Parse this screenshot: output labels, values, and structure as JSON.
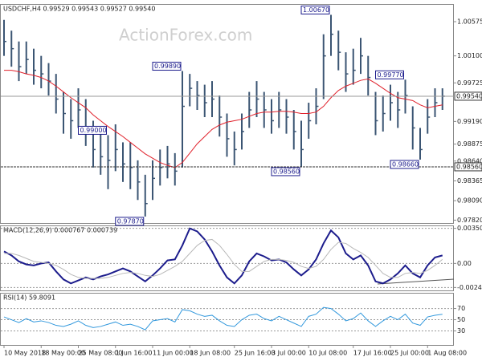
{
  "chart_data": [
    {
      "type": "ohlc",
      "title": "USDCHF,H4  0.99529 0.99543 0.99527 0.99540",
      "watermark": "ActionForex.com",
      "bar_color": "#3b5573",
      "ma_color": "#e0202a",
      "high": [
        1.006,
        1.0045,
        1.003,
        1.003,
        1.002,
        1.001,
        1.0,
        0.9985,
        0.996,
        0.995,
        0.9965,
        0.995,
        0.992,
        0.9905,
        0.99,
        0.9915,
        0.989,
        0.989,
        0.9865,
        0.9845,
        0.9865,
        0.988,
        0.9885,
        0.9875,
        0.9989,
        0.9985,
        0.9975,
        0.997,
        0.9975,
        0.9955,
        0.993,
        0.9905,
        0.993,
        0.996,
        0.9975,
        0.996,
        0.995,
        0.996,
        0.995,
        0.9935,
        0.992,
        0.9945,
        0.9965,
        1.004,
        1.0067,
        1.0045,
        1.0015,
        1.002,
        1.0035,
        1.001,
        0.996,
        0.9955,
        0.997,
        0.996,
        0.9977,
        0.994,
        0.991,
        0.995,
        0.9965,
        0.9965
      ],
      "low": [
        1.001,
        0.9995,
        0.9975,
        0.9985,
        0.997,
        0.9965,
        0.9955,
        0.993,
        0.9902,
        0.9895,
        0.991,
        0.9885,
        0.9855,
        0.9845,
        0.9825,
        0.985,
        0.9835,
        0.9825,
        0.981,
        0.9787,
        0.981,
        0.983,
        0.984,
        0.983,
        0.9855,
        0.994,
        0.9935,
        0.9925,
        0.9925,
        0.9898,
        0.987,
        0.9858,
        0.988,
        0.991,
        0.9925,
        0.991,
        0.9902,
        0.991,
        0.9902,
        0.988,
        0.9856,
        0.9895,
        0.9915,
        0.995,
        1.001,
        0.999,
        0.996,
        0.997,
        0.9985,
        0.9955,
        0.99,
        0.9905,
        0.992,
        0.991,
        0.993,
        0.988,
        0.9866,
        0.9902,
        0.9925,
        0.9935
      ],
      "close": [
        1.003,
        1.002,
        0.9995,
        1.0005,
        0.999,
        0.9985,
        0.9975,
        0.995,
        0.993,
        0.992,
        0.9935,
        0.991,
        0.988,
        0.987,
        0.9865,
        0.988,
        0.986,
        0.9855,
        0.9835,
        0.9805,
        0.984,
        0.9855,
        0.986,
        0.985,
        0.994,
        0.9965,
        0.9955,
        0.9945,
        0.995,
        0.9925,
        0.9895,
        0.988,
        0.9905,
        0.9935,
        0.995,
        0.9935,
        0.992,
        0.9935,
        0.9925,
        0.9905,
        0.988,
        0.992,
        0.994,
        1.001,
        1.004,
        1.0015,
        0.9985,
        0.999,
        1.001,
        0.998,
        0.992,
        0.993,
        0.9945,
        0.9935,
        0.9955,
        0.991,
        0.988,
        0.9925,
        0.9945,
        0.9954
      ],
      "ma": [
        0.999,
        0.999,
        0.9988,
        0.9985,
        0.9983,
        0.998,
        0.9975,
        0.9968,
        0.996,
        0.9952,
        0.9945,
        0.9938,
        0.9928,
        0.992,
        0.9912,
        0.9905,
        0.9898,
        0.989,
        0.9882,
        0.9874,
        0.9868,
        0.9862,
        0.9858,
        0.9855,
        0.9862,
        0.9875,
        0.9888,
        0.9898,
        0.9908,
        0.9914,
        0.9918,
        0.992,
        0.9922,
        0.9926,
        0.993,
        0.9932,
        0.9932,
        0.9933,
        0.9933,
        0.9932,
        0.993,
        0.993,
        0.9932,
        0.994,
        0.9952,
        0.9962,
        0.9968,
        0.9972,
        0.9976,
        0.9978,
        0.9972,
        0.9965,
        0.9958,
        0.9952,
        0.995,
        0.9948,
        0.9942,
        0.9938,
        0.994,
        0.9942
      ],
      "ylim": [
        0.9778,
        1.0082
      ],
      "yticks": [
        1.00575,
        {
          "value": 1.001,
          "label": "1.00100"
        },
        0.99725,
        {
          "value": 0.9919,
          "label": "0.99190"
        },
        0.98875,
        {
          "value": 0.9864,
          "label": "0.98640"
        },
        0.98365,
        {
          "value": 0.9809,
          "label": "0.98090"
        },
        {
          "value": 0.9782,
          "label": "0.97820"
        }
      ],
      "current": {
        "value": 0.9954,
        "label": "0.99540"
      },
      "level": {
        "value": 0.9856,
        "label": "0.98560"
      },
      "annotations": [
        {
          "value": 1.0067,
          "label": "1.00670"
        },
        {
          "value": 0.9989,
          "label": "0.99890"
        },
        {
          "value": 0.9977,
          "label": "0.99770"
        },
        {
          "value": 0.99,
          "label": "0.99000"
        },
        {
          "value": 0.9866,
          "label": "0.98660"
        },
        {
          "value": 0.9856,
          "label": "0.98560"
        },
        {
          "value": 0.9787,
          "label": "0.97870"
        }
      ]
    },
    {
      "type": "line",
      "title": "MACD(12,26,9) 0.000767 0.000739",
      "grid": true,
      "ylim": [
        -0.0027,
        0.0038
      ],
      "yticks": [
        0.003509,
        {
          "value": 0,
          "label": "0.00"
        },
        -0.002408
      ],
      "series": [
        {
          "color": "#1c1c8c",
          "values": [
            0.0012,
            0.0008,
            0.0002,
            -0.0001,
            -0.0002,
            0.0,
            0.0001,
            -0.0008,
            -0.0016,
            -0.002,
            -0.0017,
            -0.0014,
            -0.0016,
            -0.0013,
            -0.0011,
            -0.0008,
            -0.0005,
            -0.0008,
            -0.0013,
            -0.0018,
            -0.0012,
            -0.0005,
            0.0003,
            0.0004,
            0.0018,
            0.0035,
            0.0032,
            0.0024,
            0.0012,
            -0.0002,
            -0.0014,
            -0.002,
            -0.0012,
            0.0002,
            0.001,
            0.0007,
            0.0003,
            0.0004,
            0.0001,
            -0.0006,
            -0.0012,
            -0.0006,
            0.0004,
            0.002,
            0.0033,
            0.0026,
            0.001,
            0.0004,
            0.0008,
            -0.0002,
            -0.0018,
            -0.002,
            -0.0016,
            -0.001,
            -0.0002,
            -0.001,
            -0.0014,
            -0.0002,
            0.0006,
            0.0008
          ]
        },
        {
          "color": "#b8b8b8",
          "values": [
            0.001,
            0.001,
            0.0008,
            0.0005,
            0.0002,
            0.0001,
            0.0,
            -0.0002,
            -0.0006,
            -0.0011,
            -0.0014,
            -0.0015,
            -0.0015,
            -0.0015,
            -0.0014,
            -0.0012,
            -0.001,
            -0.0009,
            -0.001,
            -0.0012,
            -0.0013,
            -0.0011,
            -0.0007,
            -0.0003,
            0.0002,
            0.001,
            0.0018,
            0.0023,
            0.0024,
            0.0018,
            0.0009,
            -0.0001,
            -0.0008,
            -0.0008,
            -0.0003,
            0.0002,
            0.0004,
            0.0004,
            0.0003,
            0.0001,
            -0.0003,
            -0.0005,
            -0.0003,
            0.0004,
            0.0014,
            0.0021,
            0.002,
            0.0015,
            0.0011,
            0.0006,
            -0.0002,
            -0.001,
            -0.0014,
            -0.0014,
            -0.001,
            -0.0009,
            -0.001,
            -0.0007,
            -0.0002,
            0.0004
          ]
        }
      ]
    },
    {
      "type": "line",
      "title": "RSI(14) 59.8091",
      "grid": true,
      "ylim": [
        5,
        98
      ],
      "yticks": [
        70,
        50,
        30
      ],
      "x": [
        "10 May 2018",
        null,
        null,
        null,
        null,
        "18 May 00:00",
        null,
        null,
        null,
        null,
        "25 May 08:00",
        null,
        null,
        null,
        null,
        "1 Jun 16:00",
        null,
        null,
        null,
        null,
        "11 Jun 00:00",
        null,
        null,
        null,
        null,
        "18 Jun 08:00",
        null,
        null,
        null,
        null,
        null,
        "25 Jun 16:00",
        null,
        null,
        null,
        null,
        "3 Jul 00:00",
        null,
        null,
        null,
        null,
        "10 Jul 08:00",
        null,
        null,
        null,
        null,
        null,
        "17 Jul 16:00",
        null,
        null,
        null,
        null,
        "25 Jul 00:00",
        null,
        null,
        null,
        null,
        "1 Aug 08:00",
        null,
        null
      ],
      "series": [
        {
          "color": "#3399dd",
          "values": [
            55,
            50,
            45,
            52,
            46,
            48,
            45,
            40,
            38,
            42,
            48,
            40,
            36,
            38,
            42,
            46,
            40,
            42,
            38,
            32,
            48,
            50,
            52,
            46,
            68,
            66,
            60,
            56,
            58,
            48,
            40,
            38,
            50,
            58,
            60,
            52,
            48,
            56,
            50,
            44,
            38,
            56,
            60,
            72,
            70,
            60,
            48,
            52,
            62,
            48,
            38,
            48,
            56,
            50,
            60,
            44,
            40,
            55,
            58,
            59.8091
          ]
        }
      ]
    }
  ]
}
